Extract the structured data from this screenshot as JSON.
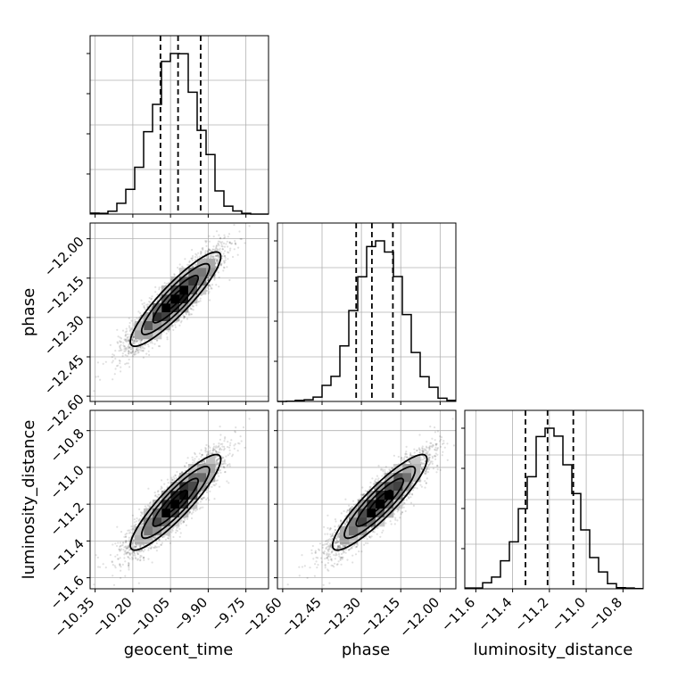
{
  "chart_data": {
    "type": "corner",
    "parameters": [
      "geocent_time",
      "phase",
      "luminosity_distance"
    ],
    "means": [
      -10.03,
      -12.23,
      -11.19
    ],
    "stds": [
      0.09,
      0.09,
      0.13
    ],
    "correlations": {
      "geocent_time|phase": 0.9,
      "geocent_time|luminosity_distance": 0.9,
      "phase|luminosity_distance": 0.9
    },
    "quantiles": [
      [
        -10.09,
        -10.02,
        -9.93
      ],
      [
        -12.32,
        -12.26,
        -12.18
      ],
      [
        -11.33,
        -11.21,
        -11.07
      ]
    ],
    "ranges": [
      [
        -10.37,
        -9.66
      ],
      [
        -12.62,
        -11.94
      ],
      [
        -11.66,
        -10.69
      ]
    ],
    "hist_bins": 20,
    "contour_levels": [
      "0.5 sigma",
      "1 sigma",
      "1.5 sigma",
      "2 sigma"
    ],
    "tick_labels": {
      "geocent_time": [
        "−10.35",
        "−10.20",
        "−10.05",
        "−9.90",
        "−9.75"
      ],
      "phase": [
        "−12.60",
        "−12.45",
        "−12.30",
        "−12.15",
        "−12.00"
      ],
      "luminosity_distance": [
        "−11.6",
        "−11.4",
        "−11.2",
        "−11.0",
        "−10.8"
      ]
    },
    "tick_values": {
      "geocent_time": [
        -10.35,
        -10.2,
        -10.05,
        -9.9,
        -9.75
      ],
      "phase": [
        -12.6,
        -12.45,
        -12.3,
        -12.15,
        -12.0
      ],
      "luminosity_distance": [
        -11.6,
        -11.4,
        -11.2,
        -11.0,
        -10.8
      ]
    },
    "axis_labels": {
      "x": [
        "geocent_time",
        "phase",
        "luminosity_distance"
      ],
      "y": [
        "phase",
        "luminosity_distance"
      ]
    },
    "grid": true
  }
}
